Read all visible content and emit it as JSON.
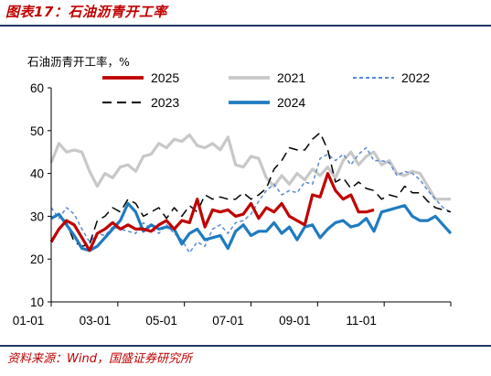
{
  "figure_title": "图表17：石油沥青开工率",
  "source": "资料来源：Wind，国盛证券研究所",
  "chart_data": {
    "type": "line",
    "title": "图表17：石油沥青开工率",
    "ylabel": "石油沥青开工率，%",
    "xlabel": "",
    "ylim": [
      10,
      60
    ],
    "yticks": [
      10,
      20,
      30,
      40,
      50,
      60
    ],
    "xticks": [
      "01-01",
      "03-01",
      "05-01",
      "07-01",
      "09-01",
      "11-01"
    ],
    "x_week_max": 52,
    "grid": false,
    "legend_placement": "top",
    "series": [
      {
        "name": "2025",
        "color": "#c00000",
        "style": "solid-thick",
        "x": [
          0,
          1,
          2,
          3,
          4,
          5,
          6,
          7,
          8,
          9,
          10,
          11,
          12,
          13,
          14,
          15,
          16,
          17,
          18,
          19,
          20,
          21,
          22,
          23,
          24,
          25,
          26,
          27,
          28,
          29,
          30,
          31,
          32,
          33,
          34,
          35,
          36,
          37,
          38,
          39,
          40,
          41,
          42
        ],
        "values": [
          24,
          27,
          29,
          28,
          25,
          22,
          26,
          27,
          28.5,
          27,
          28,
          27,
          27,
          26.5,
          28,
          29,
          27,
          29,
          28.5,
          34,
          27.5,
          31.5,
          31,
          31.5,
          30,
          30.5,
          33,
          29.5,
          32,
          31,
          33,
          30,
          29,
          28,
          35,
          34.5,
          40,
          36,
          34,
          35,
          31,
          31,
          31.5
        ]
      },
      {
        "name": "2021",
        "color": "#c8c8c8",
        "style": "solid-thick",
        "x": [
          0,
          1,
          2,
          3,
          4,
          5,
          6,
          7,
          8,
          9,
          10,
          11,
          12,
          13,
          14,
          15,
          16,
          17,
          18,
          19,
          20,
          21,
          22,
          23,
          24,
          25,
          26,
          27,
          28,
          29,
          30,
          31,
          32,
          33,
          34,
          35,
          36,
          37,
          38,
          39,
          40,
          41,
          42,
          43,
          44,
          45,
          46,
          47,
          48,
          49,
          50,
          51,
          52
        ],
        "values": [
          42.5,
          47,
          45,
          45.5,
          45,
          40.5,
          37,
          40,
          39,
          41.5,
          42,
          40.5,
          44,
          44.5,
          47,
          46,
          48,
          47.5,
          49,
          46.5,
          46,
          47,
          45.5,
          48.5,
          42,
          41.5,
          44,
          43.5,
          39,
          37,
          39.5,
          37.5,
          40,
          38.5,
          41,
          39.5,
          41.5,
          39,
          43,
          45,
          42,
          44,
          45,
          42,
          43,
          40,
          39.5,
          40.5,
          40,
          37,
          34,
          34,
          34
        ]
      },
      {
        "name": "2022",
        "color": "#5b8bd0",
        "style": "short-dash",
        "x": [
          0,
          1,
          2,
          3,
          4,
          5,
          6,
          7,
          8,
          9,
          10,
          11,
          12,
          13,
          14,
          15,
          16,
          17,
          18,
          19,
          20,
          21,
          22,
          23,
          24,
          25,
          26,
          27,
          28,
          29,
          30,
          31,
          32,
          33,
          34,
          35,
          36,
          37,
          38,
          39,
          40,
          41,
          42,
          43,
          44,
          45,
          46,
          47,
          48,
          49,
          50,
          51,
          52
        ],
        "values": [
          32,
          29.5,
          32,
          30.5,
          27,
          24,
          26,
          25.5,
          27.5,
          27,
          26.5,
          26,
          28.5,
          27,
          26,
          28,
          26,
          24.5,
          21.5,
          24,
          23,
          27,
          28,
          26,
          28.5,
          29,
          30.5,
          33.5,
          36,
          37.5,
          35,
          36,
          35.5,
          38,
          37.5,
          43.5,
          44.5,
          43,
          44.5,
          42,
          44.5,
          46,
          43,
          43,
          42.5,
          39.5,
          40.5,
          40,
          38.5,
          36,
          34,
          32,
          31
        ]
      },
      {
        "name": "2023",
        "color": "#000000",
        "style": "long-dash",
        "x": [
          0,
          1,
          2,
          3,
          4,
          5,
          6,
          7,
          8,
          9,
          10,
          11,
          12,
          13,
          14,
          15,
          16,
          17,
          18,
          19,
          20,
          21,
          22,
          23,
          24,
          25,
          26,
          27,
          28,
          29,
          30,
          31,
          32,
          33,
          34,
          35,
          36,
          37,
          38,
          39,
          40,
          41,
          42,
          43,
          44,
          45,
          46,
          47,
          48,
          49,
          50,
          51,
          52
        ],
        "values": [
          29.5,
          30.5,
          28.5,
          24,
          23,
          23.5,
          29,
          30,
          32,
          31,
          34,
          33,
          30,
          31,
          32,
          29.5,
          32,
          30,
          32.5,
          31,
          35,
          34,
          34.5,
          34,
          34,
          35.5,
          34,
          35,
          36.5,
          41,
          43,
          46,
          45.5,
          45.5,
          48,
          49.5,
          45.5,
          38,
          39,
          36.5,
          38,
          36.5,
          36,
          34,
          35,
          34.5,
          37,
          35.5,
          35.5,
          33.5,
          32,
          31.5,
          31
        ]
      },
      {
        "name": "2024",
        "color": "#1f7bc0",
        "style": "solid-thick",
        "x": [
          0,
          1,
          2,
          3,
          4,
          5,
          6,
          7,
          8,
          9,
          10,
          11,
          12,
          13,
          14,
          15,
          16,
          17,
          18,
          19,
          20,
          21,
          22,
          23,
          24,
          25,
          26,
          27,
          28,
          29,
          30,
          31,
          32,
          33,
          34,
          35,
          36,
          37,
          38,
          39,
          40,
          41,
          42,
          43,
          44,
          45,
          46,
          47,
          48,
          49,
          50,
          51,
          52
        ],
        "values": [
          29.5,
          30.5,
          28,
          25.5,
          22.5,
          22,
          23,
          25,
          27,
          29,
          33,
          31,
          26.5,
          28,
          27,
          27.5,
          27,
          23.5,
          26,
          27,
          24.5,
          25,
          25.5,
          22.5,
          26.5,
          28,
          25.5,
          26.5,
          26.5,
          28.5,
          26,
          27.5,
          24.5,
          27.5,
          28,
          25,
          27,
          28.5,
          29,
          27.5,
          28,
          29.5,
          26.5,
          31,
          31.5,
          32,
          32.5,
          30,
          29,
          29,
          30,
          28,
          26
        ]
      }
    ]
  }
}
